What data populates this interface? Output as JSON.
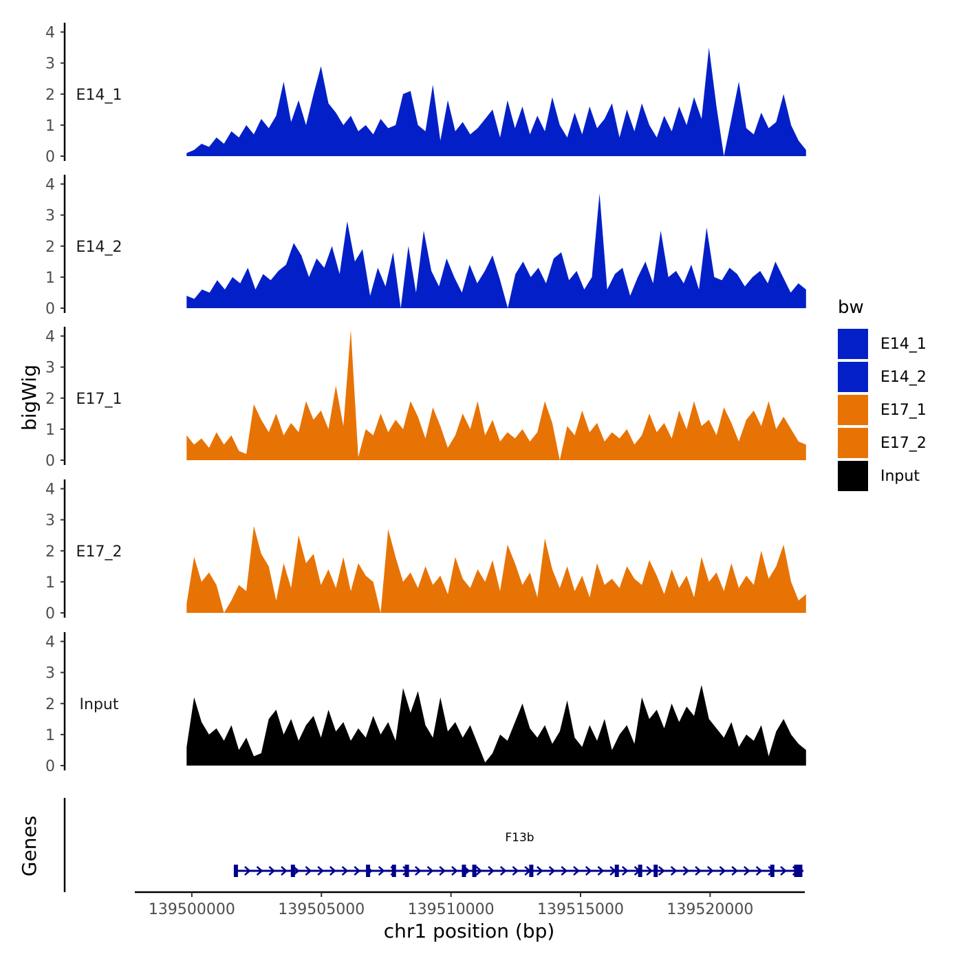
{
  "chart_data": {
    "type": "area",
    "ylabel": "bigWig",
    "xlabel": "chr1 position (bp)",
    "xlim": [
      139497800,
      139523600
    ],
    "x_ticks": [
      139500000,
      139505000,
      139510000,
      139515000,
      139520000
    ],
    "x_tick_labels": [
      "139500000",
      "139505000",
      "139510000",
      "139515000",
      "139520000"
    ],
    "ylim": [
      0,
      4.3
    ],
    "y_ticks": [
      0,
      1,
      2,
      3,
      4
    ],
    "y_tick_labels": [
      "0",
      "1",
      "2",
      "3",
      "4"
    ],
    "track_range": [
      139499800,
      139523700
    ],
    "legend": {
      "title": "bw",
      "position": "right",
      "entries": [
        {
          "label": "E14_1",
          "color": "#0320C8"
        },
        {
          "label": "E14_2",
          "color": "#0320C8"
        },
        {
          "label": "E17_1",
          "color": "#E87305"
        },
        {
          "label": "E17_2",
          "color": "#E87305"
        },
        {
          "label": "Input",
          "color": "#000000"
        }
      ]
    },
    "series": [
      {
        "name": "E14_1",
        "color": "#0320C8",
        "values": [
          0.1,
          0.2,
          0.4,
          0.3,
          0.6,
          0.4,
          0.8,
          0.6,
          1.0,
          0.7,
          1.2,
          0.9,
          1.3,
          2.4,
          1.1,
          1.8,
          1.0,
          2.0,
          2.9,
          1.7,
          1.4,
          1.0,
          1.3,
          0.8,
          1.0,
          0.7,
          1.2,
          0.9,
          1.0,
          2.0,
          2.1,
          1.0,
          0.8,
          2.3,
          0.5,
          1.8,
          0.8,
          1.1,
          0.7,
          0.9,
          1.2,
          1.5,
          0.6,
          1.8,
          0.9,
          1.6,
          0.7,
          1.3,
          0.8,
          1.9,
          1.0,
          0.6,
          1.4,
          0.7,
          1.6,
          0.9,
          1.2,
          1.7,
          0.6,
          1.5,
          0.8,
          1.7,
          1.0,
          0.6,
          1.3,
          0.8,
          1.6,
          1.0,
          1.9,
          1.2,
          3.5,
          1.6,
          0.0,
          1.2,
          2.4,
          0.9,
          0.7,
          1.4,
          0.9,
          1.1,
          2.0,
          1.0,
          0.5,
          0.2
        ]
      },
      {
        "name": "E14_2",
        "color": "#0320C8",
        "values": [
          0.4,
          0.3,
          0.6,
          0.5,
          0.9,
          0.6,
          1.0,
          0.8,
          1.3,
          0.6,
          1.1,
          0.9,
          1.2,
          1.4,
          2.1,
          1.7,
          1.0,
          1.6,
          1.3,
          2.0,
          1.1,
          2.8,
          1.5,
          1.9,
          0.4,
          1.3,
          0.7,
          1.8,
          0.0,
          2.0,
          0.5,
          2.5,
          1.2,
          0.7,
          1.6,
          1.0,
          0.5,
          1.4,
          0.8,
          1.2,
          1.7,
          0.9,
          0.0,
          1.1,
          1.5,
          1.0,
          1.3,
          0.8,
          1.6,
          1.8,
          0.9,
          1.2,
          0.6,
          1.0,
          3.7,
          0.6,
          1.1,
          1.3,
          0.4,
          1.0,
          1.5,
          0.8,
          2.5,
          1.0,
          1.2,
          0.8,
          1.4,
          0.6,
          2.6,
          1.0,
          0.9,
          1.3,
          1.1,
          0.7,
          1.0,
          1.2,
          0.8,
          1.5,
          1.0,
          0.5,
          0.8,
          0.6
        ]
      },
      {
        "name": "E17_1",
        "color": "#E87305",
        "values": [
          0.8,
          0.5,
          0.7,
          0.4,
          0.9,
          0.5,
          0.8,
          0.3,
          0.2,
          1.8,
          1.3,
          0.9,
          1.5,
          0.8,
          1.2,
          0.9,
          1.9,
          1.3,
          1.6,
          1.0,
          2.4,
          1.1,
          4.2,
          0.1,
          1.0,
          0.8,
          1.5,
          0.9,
          1.3,
          1.0,
          1.9,
          1.4,
          0.7,
          1.7,
          1.1,
          0.4,
          0.8,
          1.5,
          1.0,
          1.9,
          0.8,
          1.3,
          0.6,
          0.9,
          0.7,
          1.0,
          0.6,
          0.9,
          1.9,
          1.2,
          0.0,
          1.1,
          0.8,
          1.6,
          0.9,
          1.2,
          0.6,
          0.9,
          0.7,
          1.0,
          0.5,
          0.8,
          1.5,
          0.9,
          1.2,
          0.7,
          1.6,
          1.0,
          1.9,
          1.1,
          1.3,
          0.8,
          1.7,
          1.2,
          0.6,
          1.3,
          1.6,
          1.1,
          1.9,
          1.0,
          1.4,
          1.0,
          0.6,
          0.5
        ]
      },
      {
        "name": "E17_2",
        "color": "#E87305",
        "values": [
          0.3,
          1.8,
          1.0,
          1.3,
          0.9,
          0.0,
          0.4,
          0.9,
          0.7,
          2.8,
          1.9,
          1.5,
          0.4,
          1.6,
          0.8,
          2.5,
          1.6,
          1.9,
          0.9,
          1.4,
          0.8,
          1.8,
          0.7,
          1.6,
          1.2,
          1.0,
          0.0,
          2.7,
          1.8,
          1.0,
          1.3,
          0.8,
          1.5,
          0.9,
          1.2,
          0.6,
          1.8,
          1.1,
          0.8,
          1.4,
          1.0,
          1.7,
          0.7,
          2.2,
          1.6,
          0.9,
          1.3,
          0.5,
          2.4,
          1.4,
          0.8,
          1.5,
          0.7,
          1.2,
          0.5,
          1.6,
          0.9,
          1.1,
          0.8,
          1.5,
          1.1,
          0.9,
          1.7,
          1.2,
          0.6,
          1.4,
          0.8,
          1.2,
          0.5,
          1.8,
          1.0,
          1.3,
          0.7,
          1.6,
          0.8,
          1.2,
          0.9,
          2.0,
          1.1,
          1.5,
          2.2,
          1.0,
          0.4,
          0.6
        ]
      },
      {
        "name": "Input",
        "color": "#000000",
        "values": [
          0.6,
          2.2,
          1.4,
          1.0,
          1.2,
          0.8,
          1.3,
          0.5,
          0.9,
          0.3,
          0.4,
          1.5,
          1.8,
          1.0,
          1.5,
          0.8,
          1.3,
          1.6,
          0.9,
          1.8,
          1.1,
          1.4,
          0.8,
          1.2,
          0.9,
          1.6,
          1.0,
          1.4,
          0.8,
          2.5,
          1.7,
          2.4,
          1.3,
          0.9,
          2.2,
          1.1,
          1.4,
          0.9,
          1.3,
          0.7,
          0.1,
          0.4,
          1.0,
          0.8,
          1.4,
          2.0,
          1.2,
          0.9,
          1.3,
          0.7,
          1.1,
          2.1,
          0.9,
          0.6,
          1.3,
          0.8,
          1.5,
          0.5,
          1.0,
          1.3,
          0.7,
          2.2,
          1.5,
          1.8,
          1.2,
          2.0,
          1.4,
          1.9,
          1.6,
          2.6,
          1.5,
          1.2,
          0.9,
          1.4,
          0.6,
          1.0,
          0.8,
          1.3,
          0.3,
          1.1,
          1.5,
          1.0,
          0.7,
          0.5
        ]
      }
    ],
    "genes_track": {
      "label": "Genes",
      "gene_name": "F13b",
      "start": 139501700,
      "end": 139523600,
      "strand": "+",
      "exons": [
        139501700,
        139503900,
        139506800,
        139507800,
        139508300,
        139510500,
        139510900,
        139513100,
        139516400,
        139517300,
        139517900,
        139522400,
        139523400
      ]
    }
  }
}
